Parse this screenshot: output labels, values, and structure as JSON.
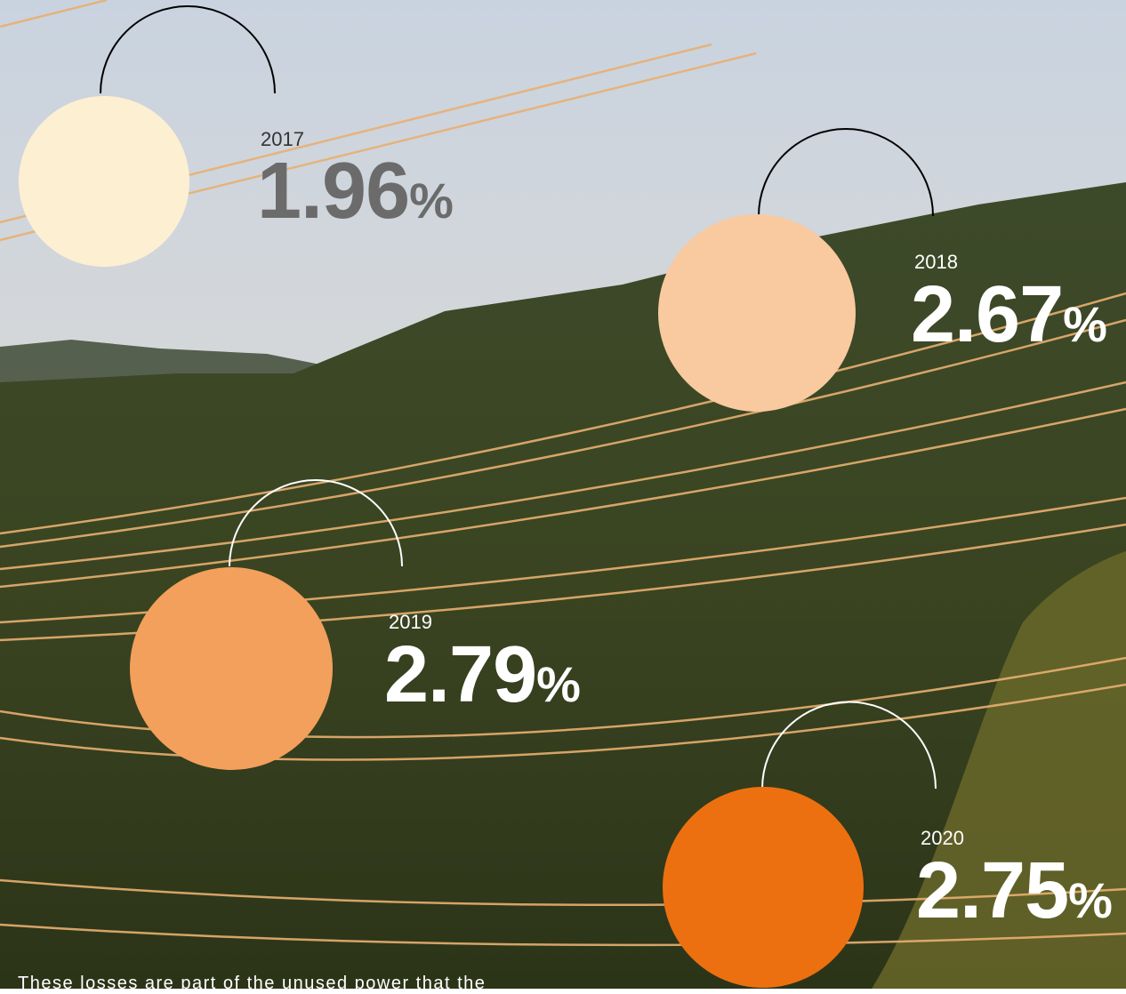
{
  "items": [
    {
      "year": "2017",
      "value": "1.96",
      "unit": "%"
    },
    {
      "year": "2018",
      "value": "2.67",
      "unit": "%"
    },
    {
      "year": "2019",
      "value": "2.79",
      "unit": "%"
    },
    {
      "year": "2020",
      "value": "2.75",
      "unit": "%"
    }
  ],
  "note": "These losses are part of the unused power that the"
}
